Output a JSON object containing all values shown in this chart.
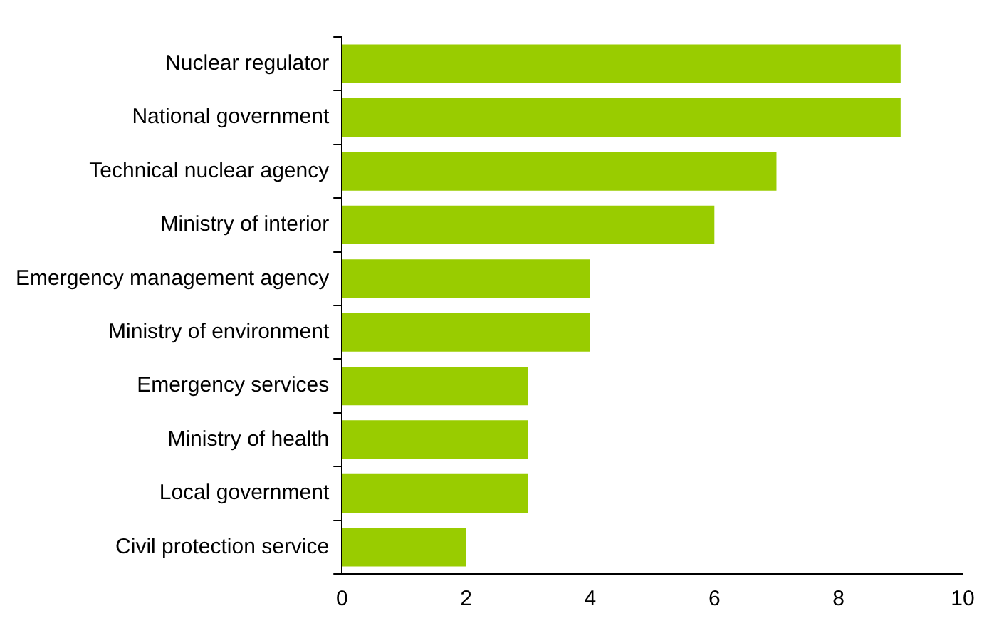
{
  "chart_data": {
    "type": "bar",
    "orientation": "horizontal",
    "categories": [
      "Nuclear regulator",
      "National government",
      "Technical nuclear agency",
      "Ministry of interior",
      "Emergency management agency",
      "Ministry of environment",
      "Emergency services",
      "Ministry of health",
      "Local government",
      "Civil protection service"
    ],
    "values": [
      9,
      9,
      7,
      6,
      4,
      4,
      3,
      3,
      3,
      2
    ],
    "color": "#99cc00",
    "xlim": [
      0,
      10
    ],
    "xticks": [
      0,
      2,
      4,
      6,
      8,
      10
    ],
    "grid": false,
    "legend": false
  }
}
